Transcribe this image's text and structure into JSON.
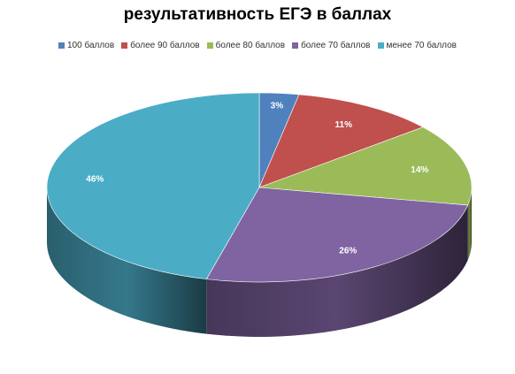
{
  "chart_data": {
    "type": "pie",
    "title": "результативность ЕГЭ в баллах",
    "legend_position": "top",
    "three_d": true,
    "slices": [
      {
        "label": "100 баллов",
        "value": 3,
        "display": "3%",
        "color": "#4F81BD"
      },
      {
        "label": "более 90 баллов",
        "value": 11,
        "display": "11%",
        "color": "#C0504D"
      },
      {
        "label": "более 80 баллов",
        "value": 14,
        "display": "14%",
        "color": "#9BBB59"
      },
      {
        "label": "более 70 баллов",
        "value": 26,
        "display": "26%",
        "color": "#8064A2"
      },
      {
        "label": "менее 70 баллов",
        "value": 46,
        "display": "46%",
        "color": "#4BACC6"
      }
    ]
  }
}
